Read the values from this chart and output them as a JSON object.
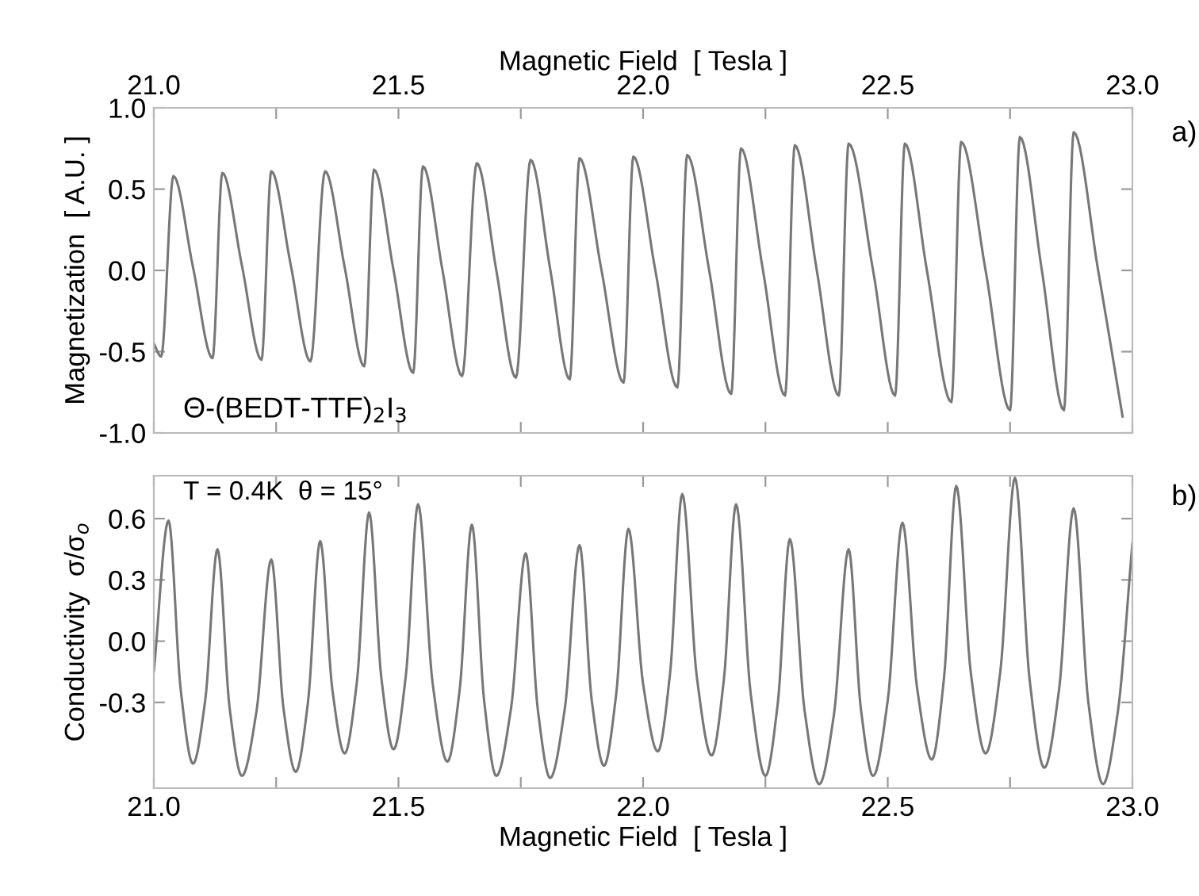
{
  "chart_data": [
    {
      "type": "line",
      "xlabel": "Magnetic Field  [ Tesla ]",
      "ylabel": "Magnetization  [ A.U. ]",
      "annotations": [
        "a)",
        "Θ-(BEDT-TTF)$_{2}$I$_{3}$"
      ],
      "xlim": [
        21.0,
        23.0
      ],
      "xticks": [
        {
          "value": 21.0,
          "label": "21.0"
        },
        {
          "value": 21.25,
          "label": null
        },
        {
          "value": 21.5,
          "label": "21.5"
        },
        {
          "value": 21.75,
          "label": null
        },
        {
          "value": 22.0,
          "label": "22.0"
        },
        {
          "value": 22.25,
          "label": null
        },
        {
          "value": 22.5,
          "label": "22.5"
        },
        {
          "value": 22.75,
          "label": null
        },
        {
          "value": 23.0,
          "label": "23.0"
        }
      ],
      "ylim": [
        -1.0,
        1.0
      ],
      "yticks": [
        {
          "value": 1.0,
          "label": "1.0"
        },
        {
          "value": 0.5,
          "label": "0.5"
        },
        {
          "value": 0.0,
          "label": "0.0"
        },
        {
          "value": -0.5,
          "label": "-0.5"
        },
        {
          "value": -1.0,
          "label": "-1.0"
        }
      ],
      "grid": false,
      "legend": false,
      "marker": "none",
      "line_style": "solid",
      "series": [
        {
          "color": "#777777",
          "x": [
            21.0,
            21.015,
            21.04,
            21.08,
            21.12,
            21.14,
            21.18,
            21.22,
            21.24,
            21.28,
            21.32,
            21.35,
            21.39,
            21.43,
            21.45,
            21.49,
            21.53,
            21.55,
            21.59,
            21.63,
            21.66,
            21.7,
            21.74,
            21.77,
            21.81,
            21.85,
            21.87,
            21.915,
            21.96,
            21.98,
            22.025,
            22.07,
            22.09,
            22.135,
            22.18,
            22.2,
            22.245,
            22.29,
            22.31,
            22.355,
            22.4,
            22.42,
            22.47,
            22.515,
            22.535,
            22.58,
            22.63,
            22.65,
            22.7,
            22.75,
            22.77,
            22.815,
            22.86,
            22.88,
            22.93,
            22.98
          ],
          "values": [
            -0.45,
            -0.53,
            0.58,
            0.02,
            -0.54,
            0.6,
            0.03,
            -0.55,
            0.61,
            0.03,
            -0.56,
            0.61,
            0.02,
            -0.59,
            0.62,
            0.0,
            -0.63,
            0.64,
            0.0,
            -0.65,
            0.66,
            0.0,
            -0.66,
            0.68,
            0.01,
            -0.67,
            0.69,
            0.0,
            -0.69,
            0.7,
            0.0,
            -0.72,
            0.71,
            0.0,
            -0.76,
            0.75,
            0.0,
            -0.77,
            0.77,
            0.0,
            -0.77,
            0.78,
            0.0,
            -0.77,
            0.78,
            0.0,
            -0.81,
            0.79,
            0.0,
            -0.86,
            0.82,
            0.0,
            -0.86,
            0.85,
            0.0,
            -0.9
          ]
        }
      ]
    },
    {
      "type": "line",
      "xlabel": "Magnetic Field  [ Tesla ]",
      "ylabel": "Conductivity  σ/σ$_{o}$",
      "annotations": [
        "b)",
        "T = 0.4K  θ = 15°"
      ],
      "xlim": [
        21.0,
        23.0
      ],
      "xticks": [
        {
          "value": 21.0,
          "label": "21.0"
        },
        {
          "value": 21.25,
          "label": null
        },
        {
          "value": 21.5,
          "label": "21.5"
        },
        {
          "value": 21.75,
          "label": null
        },
        {
          "value": 22.0,
          "label": "22.0"
        },
        {
          "value": 22.25,
          "label": null
        },
        {
          "value": 22.5,
          "label": "22.5"
        },
        {
          "value": 22.75,
          "label": null
        },
        {
          "value": 23.0,
          "label": "23.0"
        }
      ],
      "ylim": [
        -0.72,
        0.81
      ],
      "yticks": [
        {
          "value": 0.6,
          "label": "0.6"
        },
        {
          "value": 0.3,
          "label": "0.3"
        },
        {
          "value": 0.0,
          "label": "0.0"
        },
        {
          "value": -0.3,
          "label": "-0.3"
        }
      ],
      "grid": false,
      "legend": false,
      "marker": "none",
      "line_style": "solid",
      "series": [
        {
          "color": "#777777",
          "x": [
            21.0,
            21.03,
            21.055,
            21.08,
            21.105,
            21.13,
            21.155,
            21.18,
            21.21,
            21.24,
            21.265,
            21.29,
            21.315,
            21.34,
            21.365,
            21.39,
            21.415,
            21.44,
            21.465,
            21.49,
            21.515,
            21.54,
            21.57,
            21.6,
            21.625,
            21.65,
            21.675,
            21.7,
            21.73,
            21.76,
            21.785,
            21.81,
            21.84,
            21.87,
            21.895,
            21.92,
            21.945,
            21.97,
            22.0,
            22.03,
            22.055,
            22.08,
            22.11,
            22.14,
            22.165,
            22.19,
            22.22,
            22.25,
            22.275,
            22.3,
            22.33,
            22.36,
            22.39,
            22.42,
            22.445,
            22.47,
            22.5,
            22.53,
            22.56,
            22.59,
            22.615,
            22.64,
            22.67,
            22.7,
            22.73,
            22.76,
            22.79,
            22.82,
            22.85,
            22.88,
            22.91,
            22.94,
            22.97,
            23.0
          ],
          "values": [
            -0.15,
            0.59,
            -0.24,
            -0.6,
            -0.29,
            0.45,
            -0.33,
            -0.66,
            -0.34,
            0.4,
            -0.33,
            -0.64,
            -0.3,
            0.49,
            -0.24,
            -0.55,
            -0.2,
            0.63,
            -0.18,
            -0.53,
            -0.17,
            0.67,
            -0.21,
            -0.59,
            -0.24,
            0.57,
            -0.29,
            -0.66,
            -0.33,
            0.43,
            -0.34,
            -0.67,
            -0.33,
            0.47,
            -0.29,
            -0.61,
            -0.26,
            0.55,
            -0.21,
            -0.54,
            -0.16,
            0.72,
            -0.18,
            -0.56,
            -0.19,
            0.67,
            -0.26,
            -0.66,
            -0.31,
            0.5,
            -0.34,
            -0.7,
            -0.36,
            0.45,
            -0.33,
            -0.66,
            -0.29,
            0.58,
            -0.23,
            -0.58,
            -0.18,
            0.76,
            -0.16,
            -0.55,
            -0.15,
            0.8,
            -0.19,
            -0.62,
            -0.24,
            0.65,
            -0.3,
            -0.7,
            -0.35,
            0.48
          ]
        }
      ]
    }
  ]
}
